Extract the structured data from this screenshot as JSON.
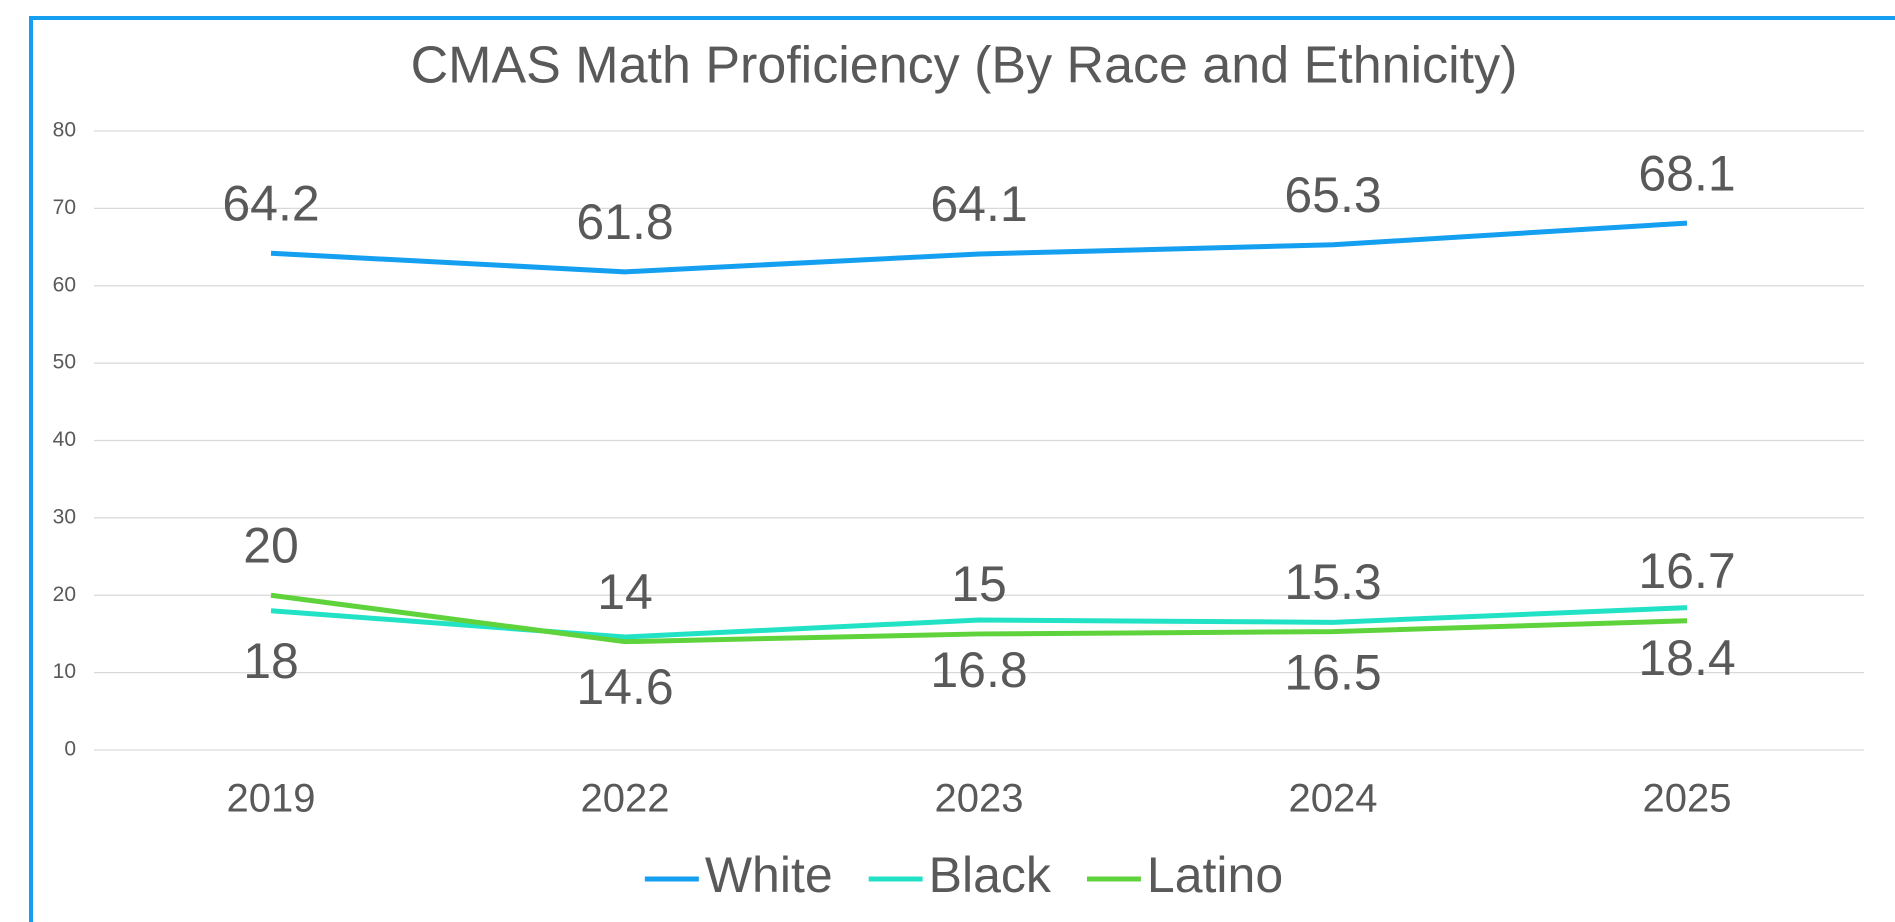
{
  "chart_data": {
    "type": "line",
    "title": "CMAS Math Proficiency (By Race and Ethnicity)",
    "categories": [
      "2019",
      "2022",
      "2023",
      "2024",
      "2025"
    ],
    "series": [
      {
        "name": "White",
        "color": "#149ff0",
        "values": [
          64.2,
          61.8,
          64.1,
          65.3,
          68.1
        ]
      },
      {
        "name": "Black",
        "color": "#22e2c6",
        "values": [
          18,
          14.6,
          16.8,
          16.5,
          18.4
        ]
      },
      {
        "name": "Latino",
        "color": "#5fd33c",
        "values": [
          20,
          14,
          15,
          15.3,
          16.7
        ]
      }
    ],
    "ylim": [
      0,
      80
    ],
    "yticks": [
      0,
      10,
      20,
      30,
      40,
      50,
      60,
      70,
      80
    ],
    "grid": true,
    "legend": "bottom"
  }
}
